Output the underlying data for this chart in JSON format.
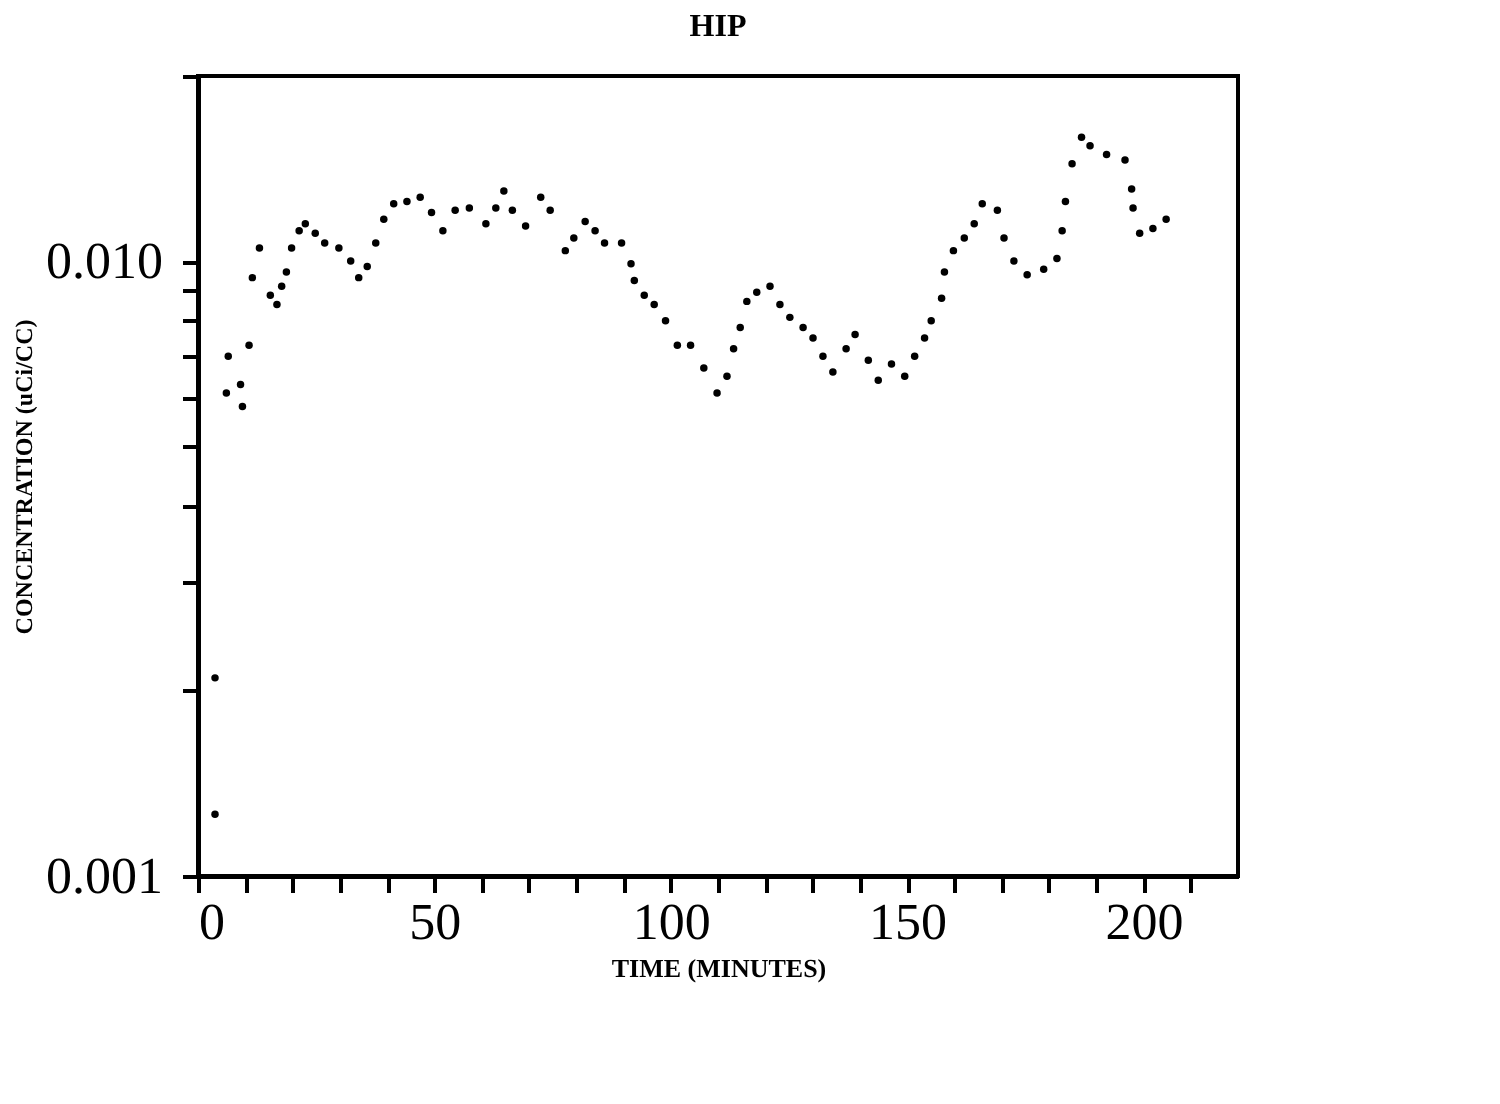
{
  "chart_data": {
    "type": "scatter",
    "title": "HIP",
    "xlabel": "TIME (MINUTES)",
    "ylabel": "CONCENTRATION (uCi/CC)",
    "log": "y",
    "marker": "circle",
    "grid": false,
    "xlim": [
      0,
      220
    ],
    "xticks": [
      0,
      {
        "value": 10,
        "label": null
      },
      {
        "value": 20,
        "label": null
      },
      {
        "value": 30,
        "label": null
      },
      {
        "value": 40,
        "label": null
      },
      50,
      {
        "value": 60,
        "label": null
      },
      {
        "value": 70,
        "label": null
      },
      {
        "value": 80,
        "label": null
      },
      {
        "value": 90,
        "label": null
      },
      100,
      {
        "value": 110,
        "label": null
      },
      {
        "value": 120,
        "label": null
      },
      {
        "value": 130,
        "label": null
      },
      {
        "value": 140,
        "label": null
      },
      150,
      {
        "value": 160,
        "label": null
      },
      {
        "value": 170,
        "label": null
      },
      {
        "value": 180,
        "label": null
      },
      {
        "value": 190,
        "label": null
      },
      200,
      {
        "value": 210,
        "label": null
      }
    ],
    "ylim": [
      0.001,
      0.02
    ],
    "yticks": [
      0.001,
      {
        "value": 0.002,
        "label": null
      },
      {
        "value": 0.003,
        "label": null
      },
      {
        "value": 0.004,
        "label": null
      },
      {
        "value": 0.005,
        "label": null
      },
      {
        "value": 0.006,
        "label": null
      },
      {
        "value": 0.007,
        "label": null
      },
      {
        "value": 0.008,
        "label": null
      },
      {
        "value": 0.009,
        "label": null
      },
      {
        "value": 0.01,
        "label": "0.010"
      },
      {
        "value": 0.02,
        "label": null
      }
    ],
    "series": [
      {
        "color": "#000000",
        "x": [
          3.6,
          3.6,
          6.0,
          6.4,
          9.0,
          9.4,
          10.8,
          11.5,
          13.0,
          15.3,
          16.7,
          17.7,
          18.7,
          19.8,
          21.4,
          22.7,
          24.8,
          26.8,
          29.8,
          32.3,
          34.0,
          35.8,
          37.6,
          39.3,
          41.4,
          44.2,
          47.0,
          49.4,
          51.8,
          54.4,
          57.4,
          60.9,
          63.0,
          64.7,
          66.5,
          69.3,
          72.5,
          74.5,
          77.7,
          79.5,
          81.9,
          84.0,
          86.0,
          89.6,
          91.6,
          92.3,
          94.4,
          96.5,
          98.9,
          101.4,
          104.2,
          107.0,
          109.8,
          111.9,
          113.3,
          114.7,
          116.1,
          118.2,
          121.0,
          123.1,
          125.2,
          128.0,
          130.1,
          132.2,
          134.3,
          137.1,
          139.0,
          141.8,
          143.9,
          146.7,
          149.5,
          151.6,
          153.7,
          155.1,
          157.3,
          157.9,
          159.8,
          162.1,
          164.2,
          165.9,
          169.1,
          170.5,
          172.6,
          175.4,
          178.9,
          181.7,
          182.8,
          183.5,
          184.9,
          186.9,
          188.7,
          192.2,
          196.1,
          197.5,
          197.8,
          199.2,
          202.0,
          204.8
        ],
        "values": [
          0.00126,
          0.0021,
          0.0061,
          0.007,
          0.0063,
          0.0058,
          0.0073,
          0.0094,
          0.0105,
          0.0088,
          0.0085,
          0.0091,
          0.0096,
          0.0105,
          0.0112,
          0.0115,
          0.0111,
          0.0107,
          0.0105,
          0.01,
          0.0094,
          0.0098,
          0.0107,
          0.0117,
          0.0124,
          0.0125,
          0.0127,
          0.012,
          0.0112,
          0.0121,
          0.0122,
          0.0115,
          0.0122,
          0.013,
          0.0121,
          0.0114,
          0.0127,
          0.0121,
          0.0104,
          0.0109,
          0.0116,
          0.0112,
          0.0107,
          0.0107,
          0.0099,
          0.0093,
          0.0088,
          0.0085,
          0.008,
          0.0073,
          0.0073,
          0.0067,
          0.0061,
          0.0065,
          0.0072,
          0.0078,
          0.0086,
          0.0089,
          0.0091,
          0.0085,
          0.0081,
          0.0078,
          0.0075,
          0.007,
          0.0066,
          0.0072,
          0.0076,
          0.0069,
          0.0064,
          0.0068,
          0.0065,
          0.007,
          0.0075,
          0.008,
          0.0087,
          0.0096,
          0.0104,
          0.0109,
          0.0115,
          0.0124,
          0.0121,
          0.0109,
          0.01,
          0.0095,
          0.0097,
          0.0101,
          0.0112,
          0.0125,
          0.0144,
          0.0159,
          0.0154,
          0.0149,
          0.0146,
          0.0131,
          0.0122,
          0.0111,
          0.0113,
          0.0117
        ]
      }
    ]
  }
}
